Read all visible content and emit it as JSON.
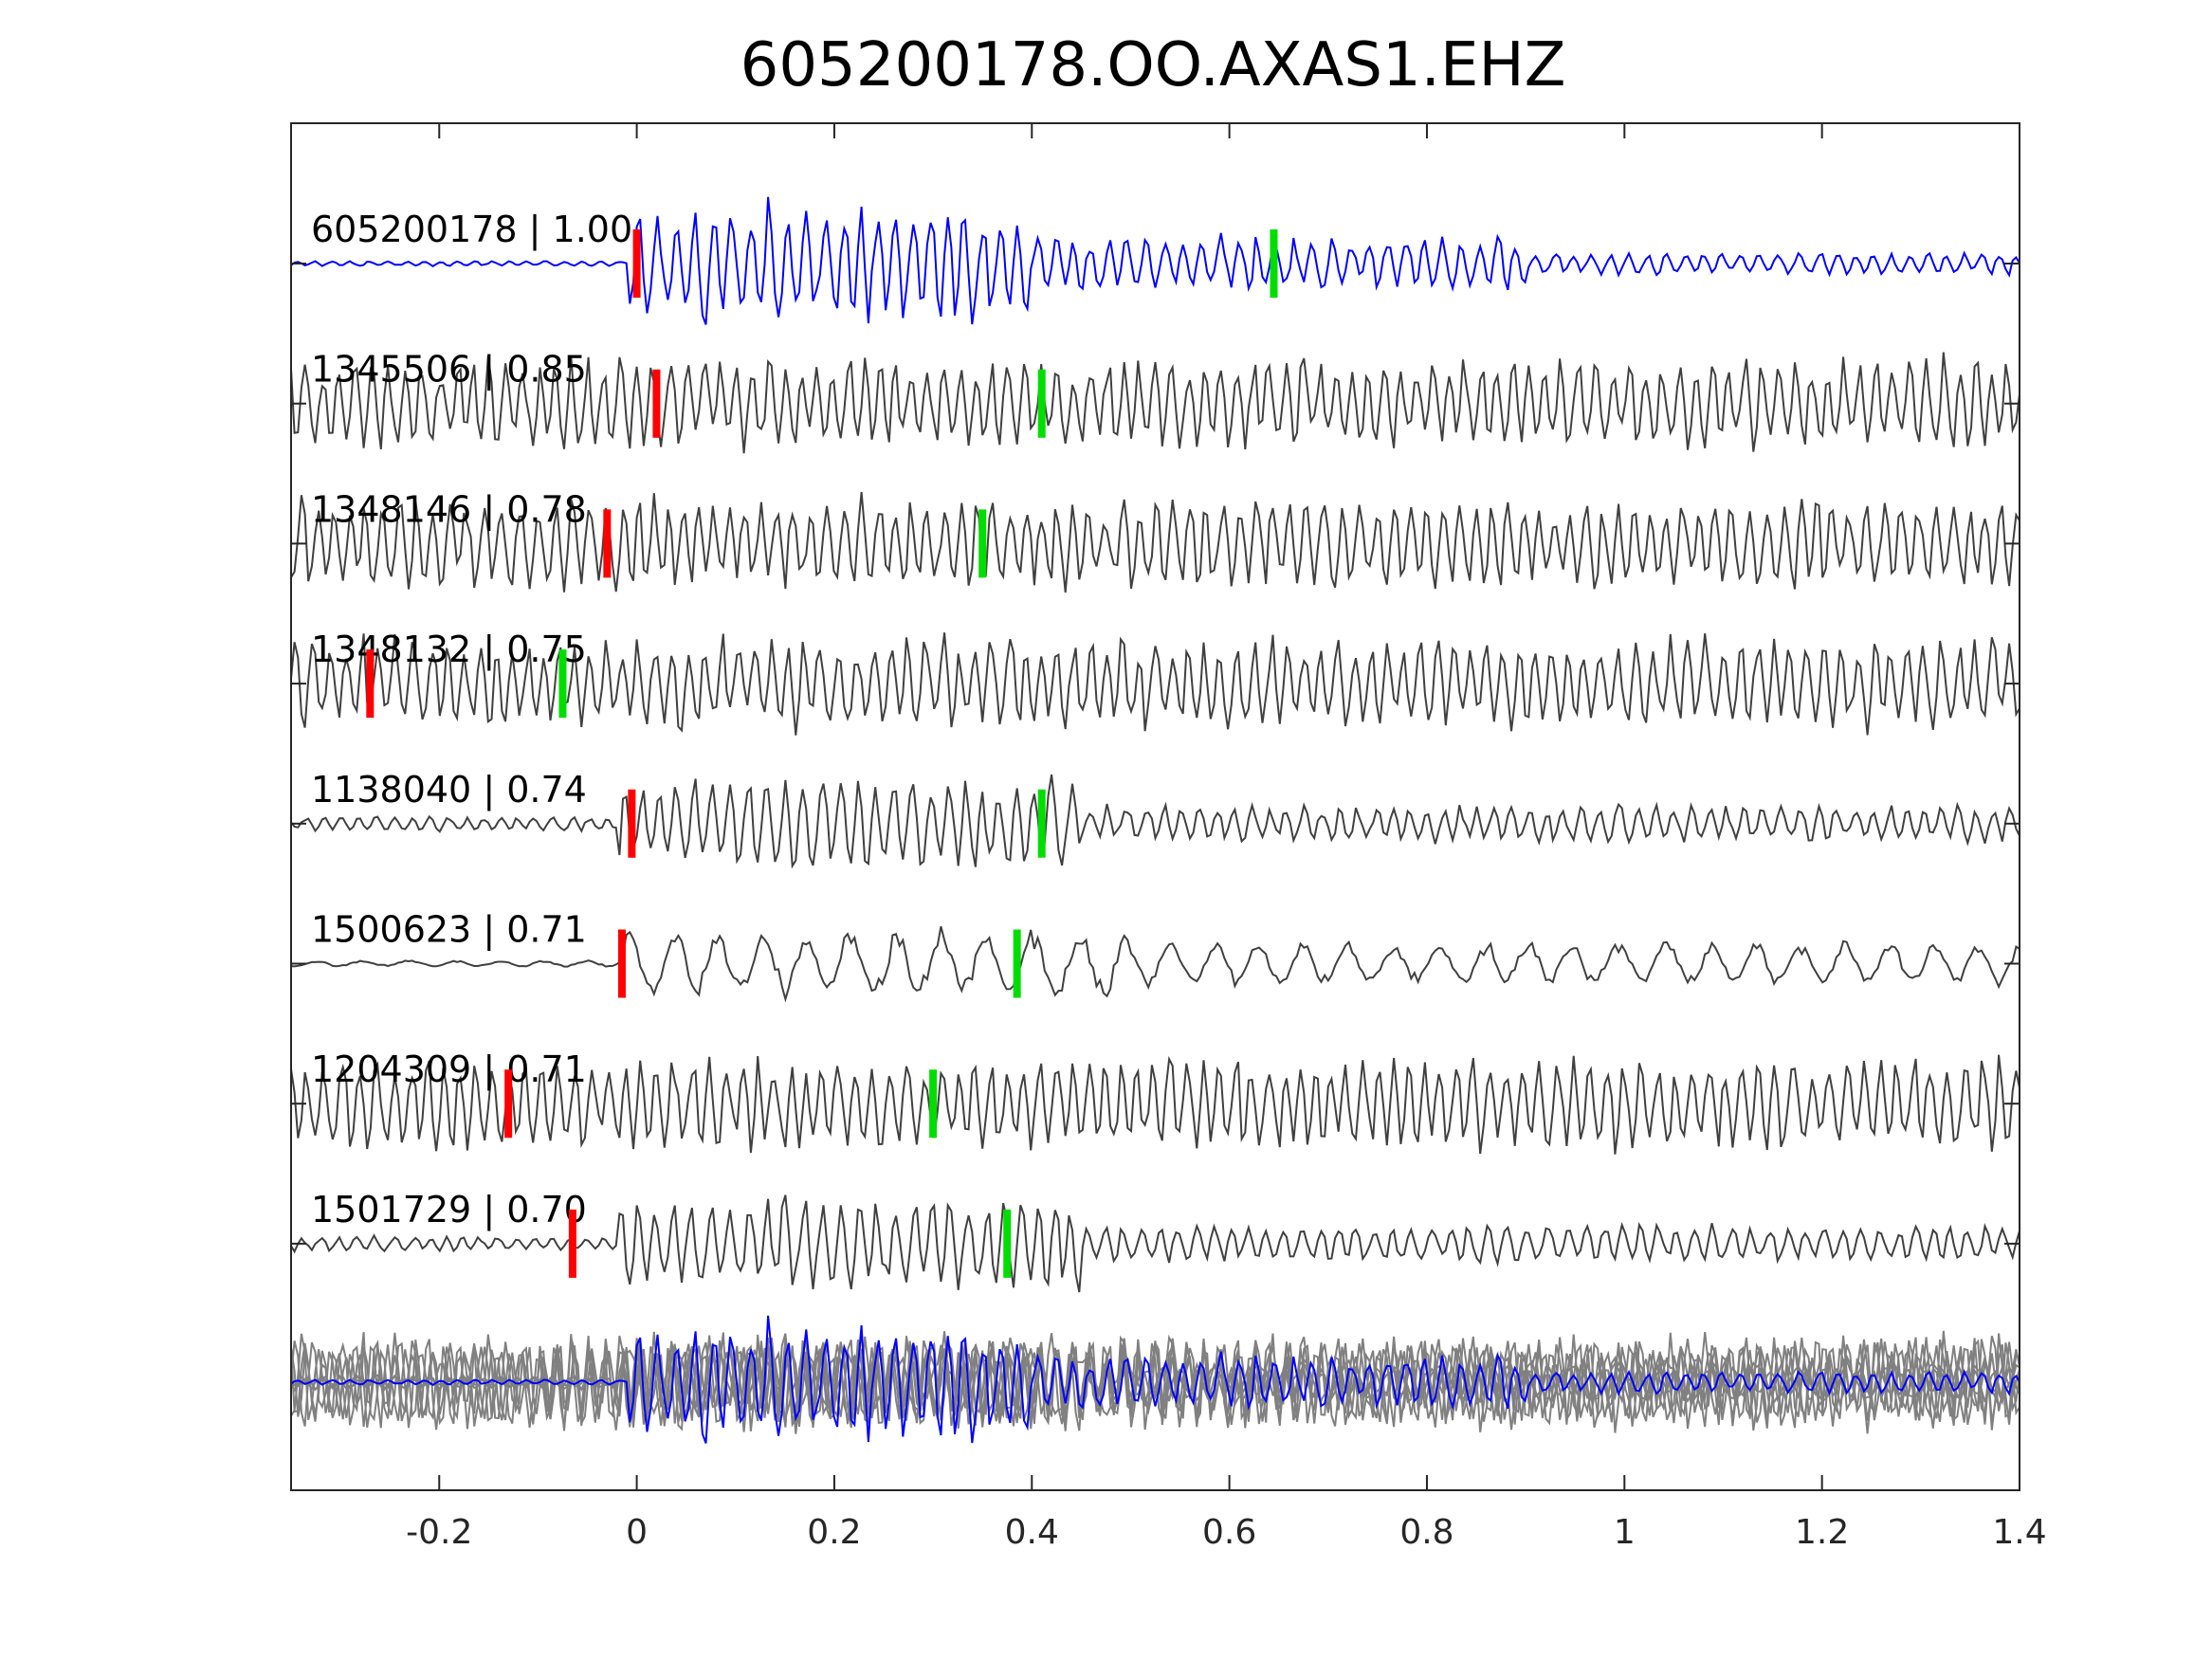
{
  "chart_data": {
    "type": "line",
    "title": "605200178.OO.AXAS1.EHZ",
    "xlabel": "",
    "ylabel": "",
    "xlim": [
      -0.35,
      1.4
    ],
    "x_ticks": [
      -0.2,
      0,
      0.2,
      0.4,
      0.6,
      0.8,
      1,
      1.2,
      1.4
    ],
    "x_tick_labels": [
      "-0.2",
      "0",
      "0.2",
      "0.4",
      "0.6",
      "0.8",
      "1",
      "1.2",
      "1.4"
    ],
    "grid": false,
    "legend": "none",
    "colors": {
      "template": "#0000ff",
      "neighbor": "#404040",
      "stack": "#808080",
      "p_pick": "#ff0000",
      "s_pick": "#00dd00",
      "axes": "#262626"
    },
    "traces": [
      {
        "label": "605200178 | 1.00",
        "id": "605200178",
        "cc": 1.0,
        "p_pick": 0.0,
        "s_pick": 0.645,
        "color": "#0000ff",
        "style": "template"
      },
      {
        "label": "1345506 | 0.85",
        "id": "1345506",
        "cc": 0.85,
        "p_pick": 0.02,
        "s_pick": 0.41,
        "color": "#404040",
        "style": "noisy"
      },
      {
        "label": "1348146 | 0.78",
        "id": "1348146",
        "cc": 0.78,
        "p_pick": -0.03,
        "s_pick": 0.35,
        "color": "#404040",
        "style": "noisy"
      },
      {
        "label": "1348132 | 0.75",
        "id": "1348132",
        "cc": 0.75,
        "p_pick": -0.27,
        "s_pick": -0.075,
        "color": "#404040",
        "style": "noisy"
      },
      {
        "label": "1138040 | 0.74",
        "id": "1138040",
        "cc": 0.74,
        "p_pick": -0.005,
        "s_pick": 0.41,
        "color": "#404040",
        "style": "quiet"
      },
      {
        "label": "1500623 | 0.71",
        "id": "1500623",
        "cc": 0.71,
        "p_pick": -0.015,
        "s_pick": 0.385,
        "color": "#404040",
        "style": "smooth"
      },
      {
        "label": "1204309 | 0.71",
        "id": "1204309",
        "cc": 0.71,
        "p_pick": -0.13,
        "s_pick": 0.3,
        "color": "#404040",
        "style": "noisy"
      },
      {
        "label": "1501729 | 0.70",
        "id": "1501729",
        "cc": 0.7,
        "p_pick": -0.065,
        "s_pick": 0.375,
        "color": "#404040",
        "style": "quiet"
      }
    ],
    "overlay": {
      "description_series": "all neighbor traces overlaid in gray with template in blue"
    }
  }
}
